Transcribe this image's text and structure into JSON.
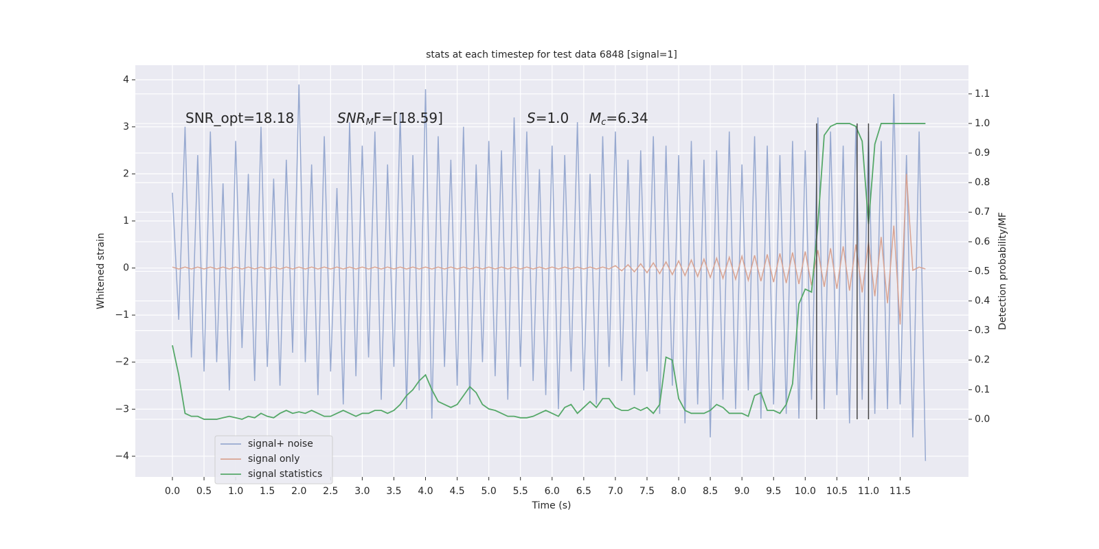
{
  "chart_data": {
    "type": "line",
    "title": "stats at each timestep for test data 6848 [signal=1]",
    "xlabel": "Time (s)",
    "ylabel": "Whitened strain",
    "y2label": "Detection probability/MF",
    "grid": true,
    "legend": "lower left",
    "xlim": [
      -0.586,
      12.58
    ],
    "ylim": [
      -4.44,
      4.31
    ],
    "y2lim": [
      -0.195,
      1.197
    ],
    "xticks": [
      {
        "value": 0,
        "label": "0.0"
      },
      0.5,
      {
        "value": 1,
        "label": "1.0"
      },
      1.5,
      {
        "value": 2,
        "label": "2.0"
      },
      2.5,
      {
        "value": 3,
        "label": "3.0"
      },
      3.5,
      {
        "value": 4,
        "label": "4.0"
      },
      4.5,
      {
        "value": 5,
        "label": "5.0"
      },
      5.5,
      {
        "value": 6,
        "label": "6.0"
      },
      6.5,
      {
        "value": 7,
        "label": "7.0"
      },
      7.5,
      {
        "value": 8,
        "label": "8.0"
      },
      8.5,
      {
        "value": 9,
        "label": "9.0"
      },
      9.5,
      {
        "value": 10,
        "label": "10.0"
      },
      10.5,
      {
        "value": 11,
        "label": "11.0"
      },
      11.5
    ],
    "yticks": [
      {
        "value": -4,
        "label": "−4"
      },
      {
        "value": -3,
        "label": "−3"
      },
      {
        "value": -2,
        "label": "−2"
      },
      {
        "value": -1,
        "label": "−1"
      },
      0,
      1,
      2,
      3,
      4
    ],
    "y2ticks": [
      {
        "value": 0,
        "label": "0.0"
      },
      0.1,
      0.2,
      0.3,
      0.4,
      0.5,
      0.6,
      0.7,
      0.8,
      0.9,
      {
        "value": 1,
        "label": "1.0"
      },
      1.1
    ],
    "x": [
      0,
      0.1,
      0.2,
      0.3,
      0.4,
      0.5,
      0.6,
      0.7,
      0.8,
      0.9,
      1,
      1.1,
      1.2,
      1.3,
      1.4,
      1.5,
      1.6,
      1.7,
      1.8,
      1.9,
      2,
      2.1,
      2.2,
      2.3,
      2.4,
      2.5,
      2.6,
      2.7,
      2.8,
      2.9,
      3,
      3.1,
      3.2,
      3.3,
      3.4,
      3.5,
      3.6,
      3.7,
      3.8,
      3.9,
      4,
      4.1,
      4.2,
      4.3,
      4.4,
      4.5,
      4.6,
      4.7,
      4.8,
      4.9,
      5,
      5.1,
      5.2,
      5.3,
      5.4,
      5.5,
      5.6,
      5.7,
      5.8,
      5.9,
      6,
      6.1,
      6.2,
      6.3,
      6.4,
      6.5,
      6.6,
      6.7,
      6.8,
      6.9,
      7,
      7.1,
      7.2,
      7.3,
      7.4,
      7.5,
      7.6,
      7.7,
      7.8,
      7.9,
      8,
      8.1,
      8.2,
      8.3,
      8.4,
      8.5,
      8.6,
      8.7,
      8.8,
      8.9,
      9,
      9.1,
      9.2,
      9.3,
      9.4,
      9.5,
      9.6,
      9.7,
      9.8,
      9.9,
      10,
      10.1,
      10.2,
      10.3,
      10.4,
      10.5,
      10.6,
      10.7,
      10.8,
      10.9,
      11,
      11.1,
      11.2,
      11.3,
      11.4,
      11.5,
      11.6,
      11.7,
      11.8,
      11.9
    ],
    "series": [
      {
        "name": "signal+ noise",
        "color": "#97a9d0",
        "values": [
          1.6,
          -1.1,
          3.0,
          -1.9,
          2.4,
          -2.2,
          2.9,
          -2.0,
          1.8,
          -2.6,
          2.7,
          -1.7,
          2.0,
          -2.4,
          3.0,
          -2.1,
          1.9,
          -2.5,
          2.3,
          -1.8,
          3.9,
          -2.0,
          2.2,
          -2.7,
          2.8,
          -2.2,
          1.7,
          -2.9,
          3.1,
          -2.3,
          2.6,
          -1.9,
          2.9,
          -2.8,
          2.2,
          -2.1,
          3.3,
          -3.0,
          2.4,
          -2.6,
          3.8,
          -3.2,
          2.8,
          -2.1,
          2.3,
          -2.5,
          3.0,
          -2.9,
          2.2,
          -2.0,
          2.7,
          -2.3,
          2.5,
          -2.8,
          3.2,
          -2.1,
          2.9,
          -2.4,
          2.1,
          -2.7,
          2.6,
          -3.0,
          2.4,
          -2.2,
          3.1,
          -2.6,
          2.0,
          -2.9,
          2.8,
          -2.1,
          2.9,
          -2.4,
          2.3,
          -2.7,
          2.5,
          -2.2,
          2.8,
          -3.1,
          2.6,
          -2.5,
          2.4,
          -3.3,
          2.7,
          -2.9,
          2.3,
          -3.6,
          2.5,
          -2.8,
          2.9,
          -3.0,
          2.2,
          -2.6,
          2.8,
          -3.2,
          2.6,
          -2.9,
          2.4,
          -3.1,
          2.7,
          -3.2,
          2.5,
          -2.8,
          3.2,
          -3.0,
          2.9,
          -2.7,
          2.6,
          -3.3,
          3.0,
          -2.8,
          2.9,
          -3.1,
          2.7,
          -3.0,
          3.7,
          -2.9,
          2.4,
          -3.6,
          2.9,
          -4.1
        ]
      },
      {
        "name": "signal only",
        "color": "#d9a391",
        "values": [
          0.02,
          -0.02,
          0.02,
          -0.02,
          0.02,
          -0.02,
          0.02,
          -0.02,
          0.02,
          -0.02,
          0.02,
          -0.02,
          0.02,
          -0.02,
          0.02,
          -0.02,
          0.02,
          -0.02,
          0.02,
          -0.02,
          0.02,
          -0.02,
          0.02,
          -0.02,
          0.02,
          -0.02,
          0.02,
          -0.02,
          0.02,
          -0.02,
          0.02,
          -0.02,
          0.02,
          -0.02,
          0.02,
          -0.02,
          0.02,
          -0.02,
          0.02,
          -0.02,
          0.02,
          -0.02,
          0.02,
          -0.02,
          0.02,
          -0.02,
          0.02,
          -0.02,
          0.02,
          -0.02,
          0.02,
          -0.02,
          0.02,
          -0.02,
          0.02,
          -0.02,
          0.02,
          -0.02,
          0.02,
          -0.02,
          0.02,
          -0.02,
          0.02,
          -0.02,
          0.02,
          -0.02,
          0.02,
          -0.02,
          0.02,
          -0.02,
          0.05,
          -0.06,
          0.07,
          -0.08,
          0.09,
          -0.1,
          0.11,
          -0.12,
          0.13,
          -0.14,
          0.15,
          -0.16,
          0.17,
          -0.18,
          0.19,
          -0.2,
          0.21,
          -0.22,
          0.23,
          -0.24,
          0.25,
          -0.26,
          0.27,
          -0.28,
          0.29,
          -0.3,
          0.31,
          -0.32,
          0.33,
          -0.34,
          0.35,
          -0.37,
          0.38,
          -0.4,
          0.42,
          -0.44,
          0.46,
          -0.48,
          0.5,
          -0.52,
          0.55,
          -0.6,
          0.66,
          -0.75,
          0.9,
          -1.2,
          2.0,
          -0.05,
          0.02,
          -0.02
        ]
      },
      {
        "name": "signal statistics",
        "color": "#55a868",
        "axis": "y2",
        "values": [
          0.25,
          0.15,
          0.02,
          0.01,
          0.01,
          0.0,
          0.0,
          0.0,
          0.005,
          0.01,
          0.005,
          0.0,
          0.01,
          0.005,
          0.02,
          0.01,
          0.005,
          0.02,
          0.03,
          0.02,
          0.025,
          0.02,
          0.03,
          0.02,
          0.01,
          0.01,
          0.02,
          0.03,
          0.02,
          0.01,
          0.02,
          0.02,
          0.03,
          0.03,
          0.02,
          0.03,
          0.05,
          0.08,
          0.1,
          0.13,
          0.15,
          0.1,
          0.06,
          0.05,
          0.04,
          0.05,
          0.08,
          0.11,
          0.09,
          0.05,
          0.035,
          0.03,
          0.02,
          0.01,
          0.01,
          0.005,
          0.005,
          0.01,
          0.02,
          0.03,
          0.02,
          0.01,
          0.04,
          0.05,
          0.02,
          0.04,
          0.06,
          0.04,
          0.07,
          0.07,
          0.04,
          0.03,
          0.03,
          0.04,
          0.03,
          0.04,
          0.02,
          0.05,
          0.21,
          0.2,
          0.07,
          0.03,
          0.02,
          0.02,
          0.02,
          0.03,
          0.05,
          0.04,
          0.02,
          0.02,
          0.02,
          0.01,
          0.08,
          0.09,
          0.03,
          0.03,
          0.02,
          0.05,
          0.12,
          0.39,
          0.44,
          0.43,
          0.66,
          0.96,
          0.99,
          1.0,
          1.0,
          1.0,
          0.99,
          0.94,
          0.66,
          0.93,
          1.0,
          1.0,
          1.0,
          1.0,
          1.0,
          1.0,
          1.0,
          1.0
        ]
      }
    ],
    "vlines": [
      10.18,
      10.82,
      11.0
    ],
    "vline_range": [
      0,
      1.0
    ],
    "vline_color": "#444444",
    "annotations": [
      {
        "text": "SNR_opt=18.18"
      },
      {
        "main": "SNR",
        "sub": "M",
        "tail": "F=[18.59]"
      },
      {
        "main": "S",
        "tail": "=1.0"
      },
      {
        "main": "M",
        "sub": "c",
        "tail": "=6.34"
      }
    ]
  }
}
